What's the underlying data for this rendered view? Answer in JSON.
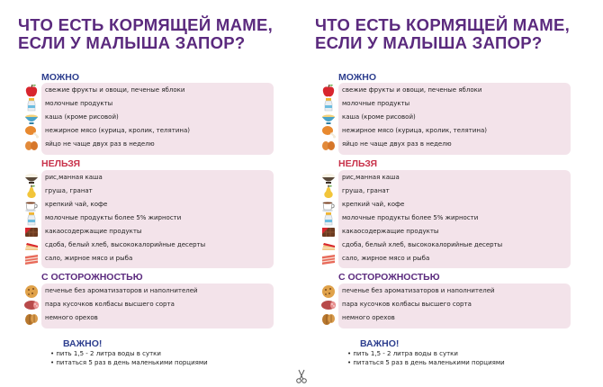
{
  "title": {
    "line1": "ЧТО ЕСТЬ КОРМЯЩЕЙ МАМЕ,",
    "line2": "ЕСЛИ У МАЛЫША ЗАПОР?"
  },
  "sections": {
    "can": {
      "heading": "МОЖНО",
      "color": "#2e3f8f",
      "items": [
        {
          "icon": "apple-icon",
          "text": "свежие фрукты и овощи, печеные яблоки"
        },
        {
          "icon": "milk-bottle-icon",
          "text": "молочные продукты"
        },
        {
          "icon": "porridge-bowl-icon",
          "text": "каша (кроме рисовой)"
        },
        {
          "icon": "chicken-leg-icon",
          "text": "нежирное мясо (курица, кролик, телятина)"
        },
        {
          "icon": "eggs-icon",
          "text": "яйцо не чаще двух раз в неделю"
        }
      ]
    },
    "cannot": {
      "heading": "НЕЛЬЗЯ",
      "color": "#c8324a",
      "items": [
        {
          "icon": "rice-bowl-icon",
          "text": "рис,манная каша"
        },
        {
          "icon": "pear-icon",
          "text": "груша, гранат"
        },
        {
          "icon": "tea-cup-icon",
          "text": "крепкий чай, кофе"
        },
        {
          "icon": "milk-bottle-icon",
          "text": "молочные продукты более 5% жирности"
        },
        {
          "icon": "chocolate-icon",
          "text": "какаосодержащие продукты"
        },
        {
          "icon": "cake-icon",
          "text": "сдоба,  белый хлеб,  высококалорийные десерты"
        },
        {
          "icon": "bacon-icon",
          "text": "сало,  жирное мясо и рыба"
        }
      ]
    },
    "careful": {
      "heading": "С ОСТОРОЖНОСТЬЮ",
      "color": "#5b2a7e",
      "items": [
        {
          "icon": "cookie-icon",
          "text": "печенье без ароматизаторов и наполнителей"
        },
        {
          "icon": "sausage-icon",
          "text": "пара кусочков колбасы высшего сорта"
        },
        {
          "icon": "nuts-icon",
          "text": "немного орехов"
        }
      ]
    }
  },
  "important": {
    "heading": "ВАЖНО!",
    "items": [
      "• пить 1,5 - 2 литра воды в сутки",
      "• питаться 5 раз в день маленькими порциями"
    ]
  },
  "colors": {
    "title": "#5b2a7e",
    "box": "#f3e3ea",
    "blue": "#2e3f8f",
    "red": "#c8324a"
  }
}
